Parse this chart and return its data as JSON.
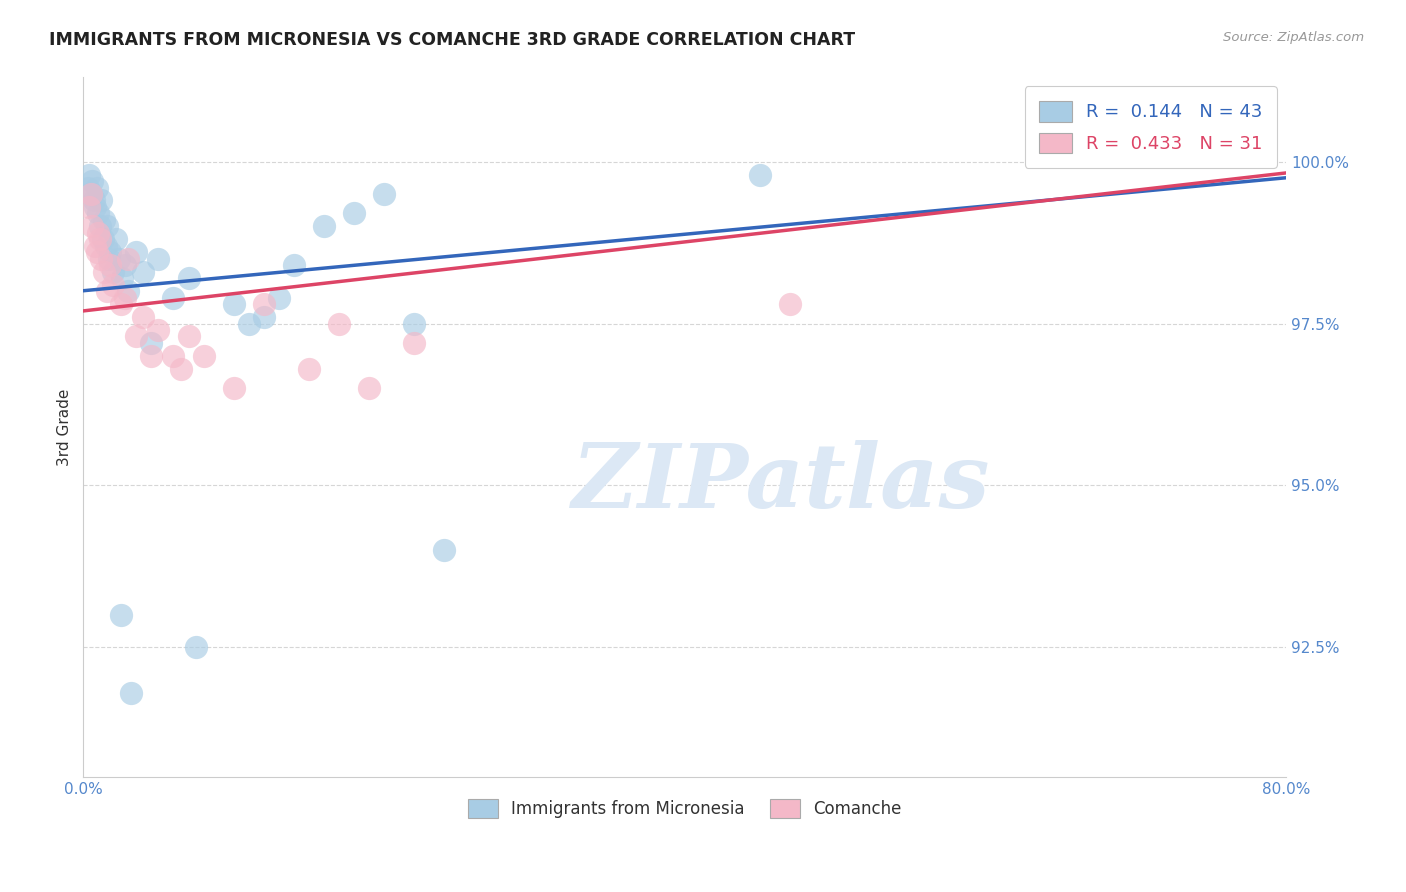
{
  "title": "IMMIGRANTS FROM MICRONESIA VS COMANCHE 3RD GRADE CORRELATION CHART",
  "source_text": "Source: ZipAtlas.com",
  "ylabel": "3rd Grade",
  "x_label_bottom": "Immigrants from Micronesia",
  "legend_label_2": "Comanche",
  "xlim": [
    0.0,
    80.0
  ],
  "ylim": [
    90.5,
    101.3
  ],
  "yticks": [
    92.5,
    95.0,
    97.5,
    100.0
  ],
  "xticks": [
    0.0,
    20.0,
    40.0,
    60.0,
    80.0
  ],
  "ytick_labels": [
    "92.5%",
    "95.0%",
    "97.5%",
    "100.0%"
  ],
  "xtick_labels": [
    "0.0%",
    "",
    "",
    "",
    "80.0%"
  ],
  "blue_R": 0.144,
  "blue_N": 43,
  "pink_R": 0.433,
  "pink_N": 31,
  "blue_color": "#a8cce4",
  "pink_color": "#f4b8c8",
  "blue_line_color": "#3366bb",
  "pink_line_color": "#dd4466",
  "grid_color": "#cccccc",
  "title_color": "#222222",
  "ylabel_color": "#333333",
  "tick_color": "#5588cc",
  "source_color": "#999999",
  "watermark_color": "#dce8f5",
  "watermark_text": "ZIPatlas",
  "blue_scatter_x": [
    0.3,
    0.4,
    0.5,
    0.6,
    0.7,
    0.8,
    0.9,
    1.0,
    1.1,
    1.2,
    1.3,
    1.4,
    1.5,
    1.6,
    1.7,
    1.8,
    2.0,
    2.2,
    2.4,
    2.6,
    2.8,
    3.0,
    3.5,
    4.0,
    5.0,
    6.0,
    7.0,
    10.0,
    11.0,
    12.0,
    13.0,
    14.0,
    16.0,
    18.0,
    20.0,
    22.0,
    24.0,
    2.5,
    3.2,
    4.5,
    7.5,
    45.0,
    65.0
  ],
  "blue_scatter_y": [
    99.6,
    99.8,
    99.5,
    99.7,
    99.4,
    99.3,
    99.6,
    99.2,
    99.0,
    99.4,
    98.8,
    99.1,
    98.7,
    99.0,
    98.5,
    98.6,
    98.3,
    98.8,
    98.5,
    98.2,
    98.4,
    98.0,
    98.6,
    98.3,
    98.5,
    97.9,
    98.2,
    97.8,
    97.5,
    97.6,
    97.9,
    98.4,
    99.0,
    99.2,
    99.5,
    97.5,
    94.0,
    93.0,
    91.8,
    97.2,
    92.5,
    99.8,
    100.2
  ],
  "pink_scatter_x": [
    0.4,
    0.6,
    0.8,
    1.0,
    1.2,
    1.4,
    1.6,
    1.8,
    2.0,
    2.5,
    3.0,
    3.5,
    4.0,
    5.0,
    6.0,
    7.0,
    8.0,
    10.0,
    12.0,
    15.0,
    17.0,
    19.0,
    22.0,
    2.8,
    4.5,
    6.5,
    0.5,
    0.9,
    1.1,
    72.0,
    47.0
  ],
  "pink_scatter_y": [
    99.3,
    99.0,
    98.7,
    98.9,
    98.5,
    98.3,
    98.0,
    98.4,
    98.1,
    97.8,
    98.5,
    97.3,
    97.6,
    97.4,
    97.0,
    97.3,
    97.0,
    96.5,
    97.8,
    96.8,
    97.5,
    96.5,
    97.2,
    97.9,
    97.0,
    96.8,
    99.5,
    98.6,
    98.8,
    100.2,
    97.8
  ]
}
